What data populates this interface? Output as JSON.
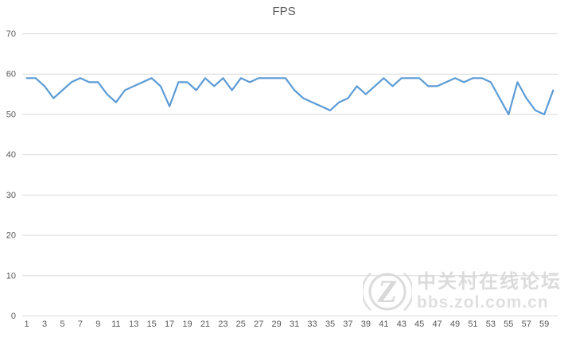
{
  "colors": {
    "line": "#5B9BD5",
    "grid": "#D9D9D9",
    "axis_text": "#595959",
    "title_text": "#595959",
    "watermark": "#DADADA"
  },
  "chart_data": {
    "type": "line",
    "title": "FPS",
    "x": [
      1,
      2,
      3,
      4,
      5,
      6,
      7,
      8,
      9,
      10,
      11,
      12,
      13,
      14,
      15,
      16,
      17,
      18,
      19,
      20,
      21,
      22,
      23,
      24,
      25,
      26,
      27,
      28,
      29,
      30,
      31,
      32,
      33,
      34,
      35,
      36,
      37,
      38,
      39,
      40,
      41,
      42,
      43,
      44,
      45,
      46,
      47,
      48,
      49,
      50,
      51,
      52,
      53,
      54,
      55,
      56,
      57,
      58,
      59,
      60
    ],
    "values": [
      59,
      59,
      57,
      54,
      56,
      58,
      59,
      58,
      58,
      55,
      53,
      56,
      57,
      58,
      59,
      57,
      52,
      58,
      58,
      56,
      59,
      57,
      59,
      56,
      59,
      58,
      59,
      59,
      59,
      59,
      56,
      54,
      53,
      52,
      51,
      53,
      54,
      57,
      55,
      57,
      59,
      57,
      59,
      59,
      59,
      57,
      57,
      58,
      59,
      58,
      59,
      59,
      58,
      54,
      50,
      58,
      54,
      51,
      50,
      56
    ],
    "xlabel": "",
    "ylabel": "",
    "x_tick_labels": [
      "1",
      "3",
      "5",
      "7",
      "9",
      "11",
      "13",
      "15",
      "17",
      "19",
      "21",
      "23",
      "25",
      "27",
      "29",
      "31",
      "33",
      "35",
      "37",
      "39",
      "41",
      "43",
      "45",
      "47",
      "49",
      "51",
      "53",
      "55",
      "57",
      "59"
    ],
    "y_ticks": [
      0,
      10,
      20,
      30,
      40,
      50,
      60,
      70
    ],
    "ylim": [
      0,
      70
    ],
    "grid": "horizontal-only",
    "legend": "none",
    "line_color": "#5B9BD5"
  },
  "watermark": {
    "logo_letter": "Z",
    "line1": "中关村在线论坛",
    "line2": "bbs.zol.com.cn"
  }
}
